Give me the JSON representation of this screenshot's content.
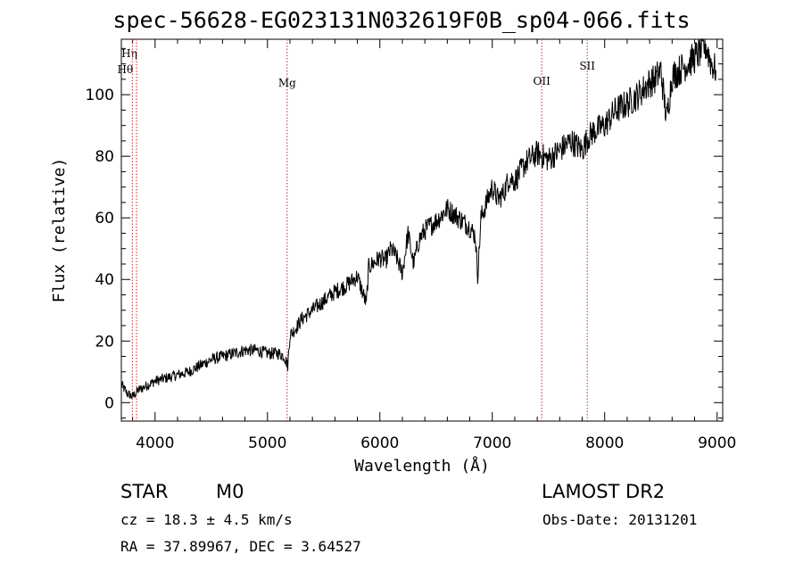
{
  "chart_data": {
    "type": "line",
    "title": "spec-56628-EG023131N032619F0B_sp04-066.fits",
    "xlabel": "Wavelength (Å)",
    "ylabel": "Flux (relative)",
    "xlim": [
      3700,
      9050
    ],
    "ylim": [
      -6,
      118
    ],
    "xticks": [
      4000,
      5000,
      6000,
      7000,
      8000,
      9000
    ],
    "yticks": [
      0,
      20,
      40,
      60,
      80,
      100
    ],
    "series": [
      {
        "x": [
          3700,
          3750,
          3800,
          3850,
          3900,
          3950,
          4000,
          4100,
          4200,
          4300,
          4400,
          4500,
          4600,
          4700,
          4800,
          4900,
          5000,
          5100,
          5150,
          5180,
          5200,
          5250,
          5300,
          5400,
          5500,
          5600,
          5700,
          5800,
          5880,
          5900,
          6000,
          6050,
          6100,
          6150,
          6200,
          6250,
          6300,
          6350,
          6400,
          6500,
          6600,
          6700,
          6800,
          6850,
          6870,
          6900,
          7000,
          7050,
          7100,
          7150,
          7200,
          7300,
          7400,
          7450,
          7500,
          7600,
          7700,
          7800,
          7850,
          7900,
          8000,
          8100,
          8200,
          8300,
          8400,
          8450,
          8500,
          8550,
          8600,
          8700,
          8800,
          8850,
          8900,
          8950,
          8990
        ],
        "y": [
          6,
          3,
          2,
          4,
          5,
          6,
          7,
          8,
          9,
          10,
          12,
          14,
          15,
          16,
          17,
          17,
          16,
          16,
          15,
          12,
          22,
          24,
          27,
          30,
          33,
          36,
          38,
          41,
          32,
          44,
          47,
          46,
          50,
          47,
          42,
          55,
          45,
          53,
          56,
          59,
          63,
          60,
          57,
          54,
          41,
          60,
          70,
          66,
          68,
          73,
          72,
          78,
          81,
          80,
          79,
          82,
          85,
          82,
          86,
          88,
          90,
          95,
          97,
          100,
          104,
          105,
          108,
          92,
          106,
          109,
          112,
          114,
          116,
          110,
          108
        ]
      }
    ],
    "lines": [
      {
        "label": "Hη",
        "x": 3835
      },
      {
        "label": "Hθ",
        "x": 3798
      },
      {
        "label": "Mg",
        "x": 5175
      },
      {
        "label": "OII",
        "x": 7440
      },
      {
        "label": "SII",
        "x": 7845
      }
    ],
    "grid": false
  },
  "info": {
    "object_class": "STAR",
    "subclass": "M0",
    "survey": "LAMOST DR2",
    "redshift": "cz = 18.3 ± 4.5 km/s",
    "obs_date": "Obs-Date: 20131201",
    "coords": "RA =  37.89967, DEC =   3.64527"
  },
  "colors": {
    "axis": "#000000",
    "spectrum": "#000000",
    "line_marker": "#c0262d"
  }
}
